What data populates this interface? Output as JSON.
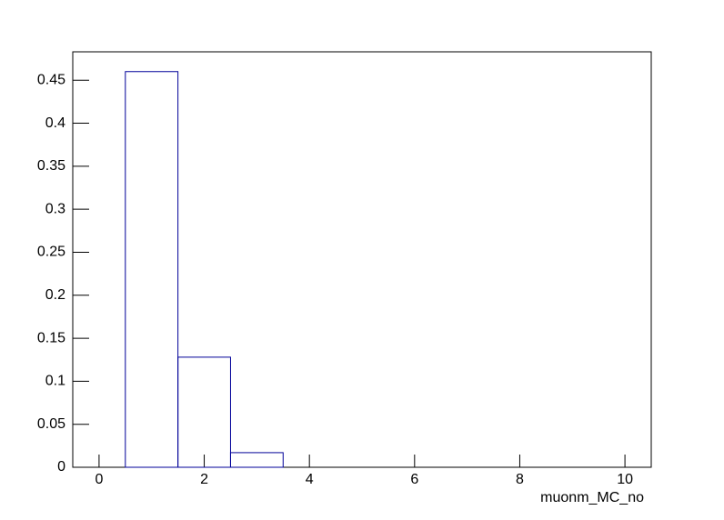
{
  "chart_data": {
    "type": "histogram",
    "x_label": "muonm_MC_no",
    "bins": [
      -0.5,
      0.5,
      1.5,
      2.5,
      3.5,
      4.5,
      5.5,
      6.5,
      7.5,
      8.5,
      9.5,
      10.5
    ],
    "values": [
      0,
      0.46,
      0.128,
      0.017,
      0,
      0,
      0,
      0,
      0,
      0,
      0
    ],
    "color": "#000099",
    "xlim": [
      -0.5,
      10.5
    ],
    "xticks": [
      0,
      2,
      4,
      6,
      8,
      10
    ],
    "ylim": [
      0,
      0.483
    ],
    "yticks": [
      0,
      0.05,
      0.1,
      0.15,
      0.2,
      0.25,
      0.3,
      0.35,
      0.4,
      0.45
    ]
  }
}
